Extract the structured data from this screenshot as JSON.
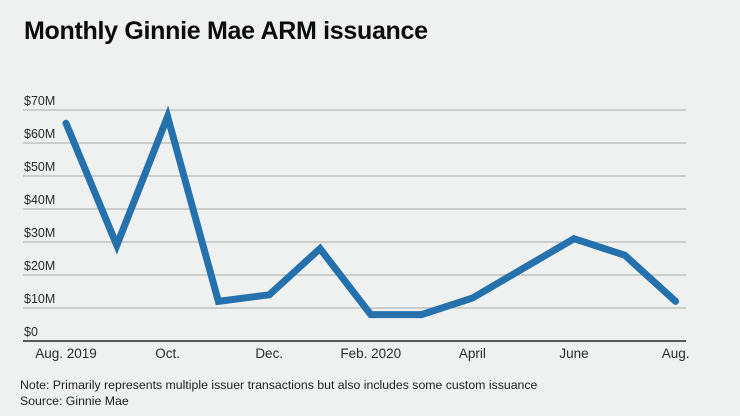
{
  "title": "Monthly Ginnie Mae ARM issuance",
  "footer": {
    "note": "Note: Primarily represents multiple issuer transactions but also includes some custom issuance",
    "source": "Source: Ginnie Mae"
  },
  "colors": {
    "background": "#eff1f0",
    "line": "#2471ae",
    "grid": "#a6aaa9",
    "axis": "#57595a",
    "title_text": "#0b0b0b",
    "tick_text": "#2a2a2a"
  },
  "chart_data": {
    "type": "line",
    "title": "Monthly Ginnie Mae ARM issuance",
    "unit": "USD millions",
    "months": [
      "Aug. 2019",
      "Sep. 2019",
      "Oct. 2019",
      "Nov. 2019",
      "Dec. 2019",
      "Jan. 2020",
      "Feb. 2020",
      "Mar. 2020",
      "April 2020",
      "May 2020",
      "June 2020",
      "July 2020",
      "Aug. 2020"
    ],
    "values": [
      66,
      29,
      68,
      12,
      14,
      28,
      8,
      8,
      13,
      22,
      31,
      26,
      12
    ],
    "x_tick_labels": [
      "Aug. 2019",
      "Oct.",
      "Dec.",
      "Feb. 2020",
      "April",
      "June",
      "Aug."
    ],
    "x_tick_step": 2,
    "y_tick_labels": [
      "$70M",
      "$60M",
      "$50M",
      "$40M",
      "$30M",
      "$20M",
      "$10M",
      "$0"
    ],
    "ylim": [
      0,
      70
    ],
    "grid": "horizontal",
    "legend": "none"
  }
}
